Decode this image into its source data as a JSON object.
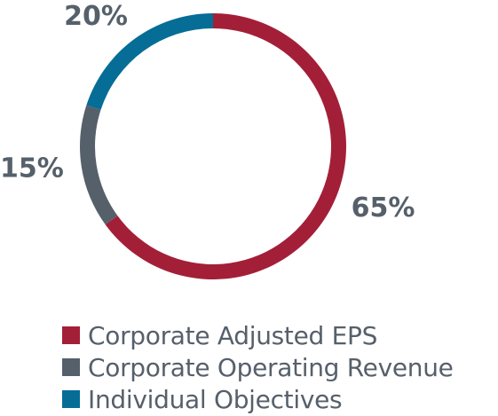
{
  "chart_data": {
    "type": "pie",
    "donut": true,
    "categories": [
      "Corporate Adjusted EPS",
      "Corporate Operating Revenue",
      "Individual Objectives"
    ],
    "values": [
      65,
      15,
      20
    ],
    "labels": [
      "65%",
      "15%",
      "20%"
    ],
    "colors": [
      "#a31f37",
      "#56606b",
      "#056d96"
    ],
    "legend_position": "bottom-left",
    "label_color": "#56606b"
  }
}
